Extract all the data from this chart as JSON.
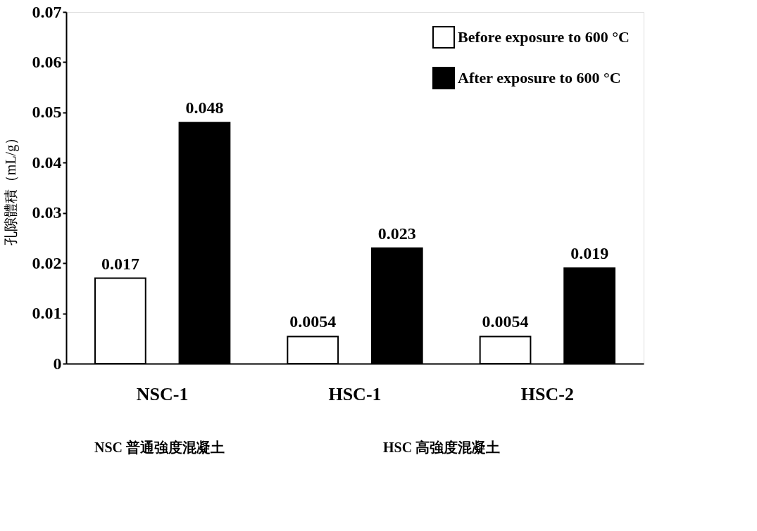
{
  "chart_data": {
    "type": "bar",
    "ylabel": "孔隙體積（mL/g）",
    "categories": [
      "NSC-1",
      "HSC-1",
      "HSC-2"
    ],
    "series": [
      {
        "name": "Before exposure to 600 °C",
        "color": "#ffffff",
        "values": [
          0.017,
          0.0054,
          0.0054
        ]
      },
      {
        "name": "After exposure to 600 °C",
        "color": "#000000",
        "values": [
          0.048,
          0.023,
          0.019
        ]
      }
    ],
    "ylim": [
      0,
      0.07
    ],
    "yticks": [
      0,
      0.01,
      0.02,
      0.03,
      0.04,
      0.05,
      0.06,
      0.07
    ],
    "data_labels": true,
    "grid": false,
    "legend": "top right",
    "annotations": [
      "NSC 普通強度混凝土",
      "HSC 高強度混凝土"
    ]
  }
}
